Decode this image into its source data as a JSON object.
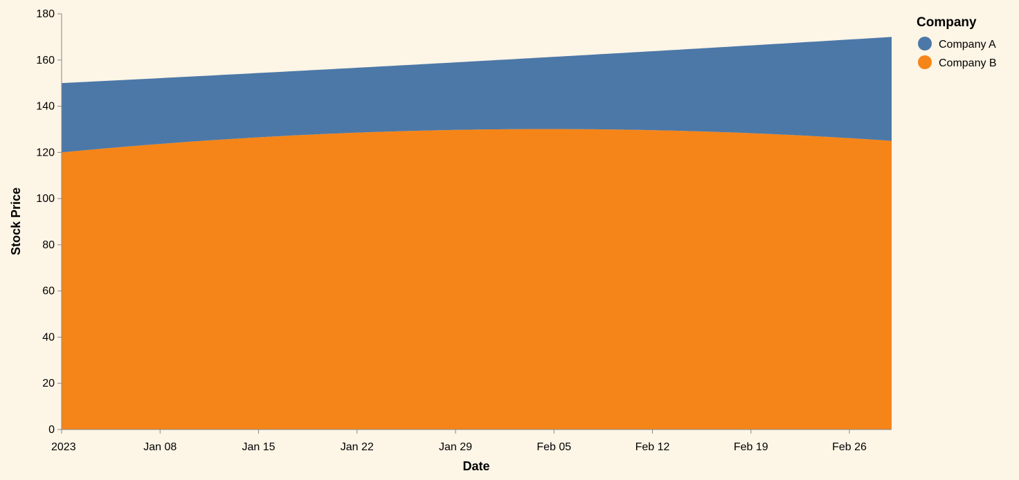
{
  "chart_data": {
    "type": "area",
    "stacked": true,
    "xlabel": "Date",
    "ylabel": "Stock Price",
    "x_range": [
      "2023-01-01",
      "2023-03-01"
    ],
    "ylim": [
      0,
      180
    ],
    "y_ticks": [
      0,
      20,
      40,
      60,
      80,
      100,
      120,
      140,
      160,
      180
    ],
    "x_ticks": [
      {
        "date": "2023-01-01",
        "label": "2023"
      },
      {
        "date": "2023-01-08",
        "label": "Jan 08"
      },
      {
        "date": "2023-01-15",
        "label": "Jan 15"
      },
      {
        "date": "2023-01-22",
        "label": "Jan 22"
      },
      {
        "date": "2023-01-29",
        "label": "Jan 29"
      },
      {
        "date": "2023-02-05",
        "label": "Feb 05"
      },
      {
        "date": "2023-02-12",
        "label": "Feb 12"
      },
      {
        "date": "2023-02-19",
        "label": "Feb 19"
      },
      {
        "date": "2023-02-26",
        "label": "Feb 26"
      }
    ],
    "x": [
      "2023-01-01",
      "2023-02-01",
      "2023-03-01"
    ],
    "series": [
      {
        "name": "Company B",
        "color": "#f58518",
        "values": [
          120,
          130,
          125
        ]
      },
      {
        "name": "Company A",
        "color": "#4c78a8",
        "values": [
          30,
          30,
          45
        ]
      }
    ],
    "grid": false,
    "legend": {
      "title": "Company",
      "placement": "right",
      "entries": [
        {
          "name": "Company A",
          "color": "#4c78a8"
        },
        {
          "name": "Company B",
          "color": "#f58518"
        }
      ]
    }
  }
}
